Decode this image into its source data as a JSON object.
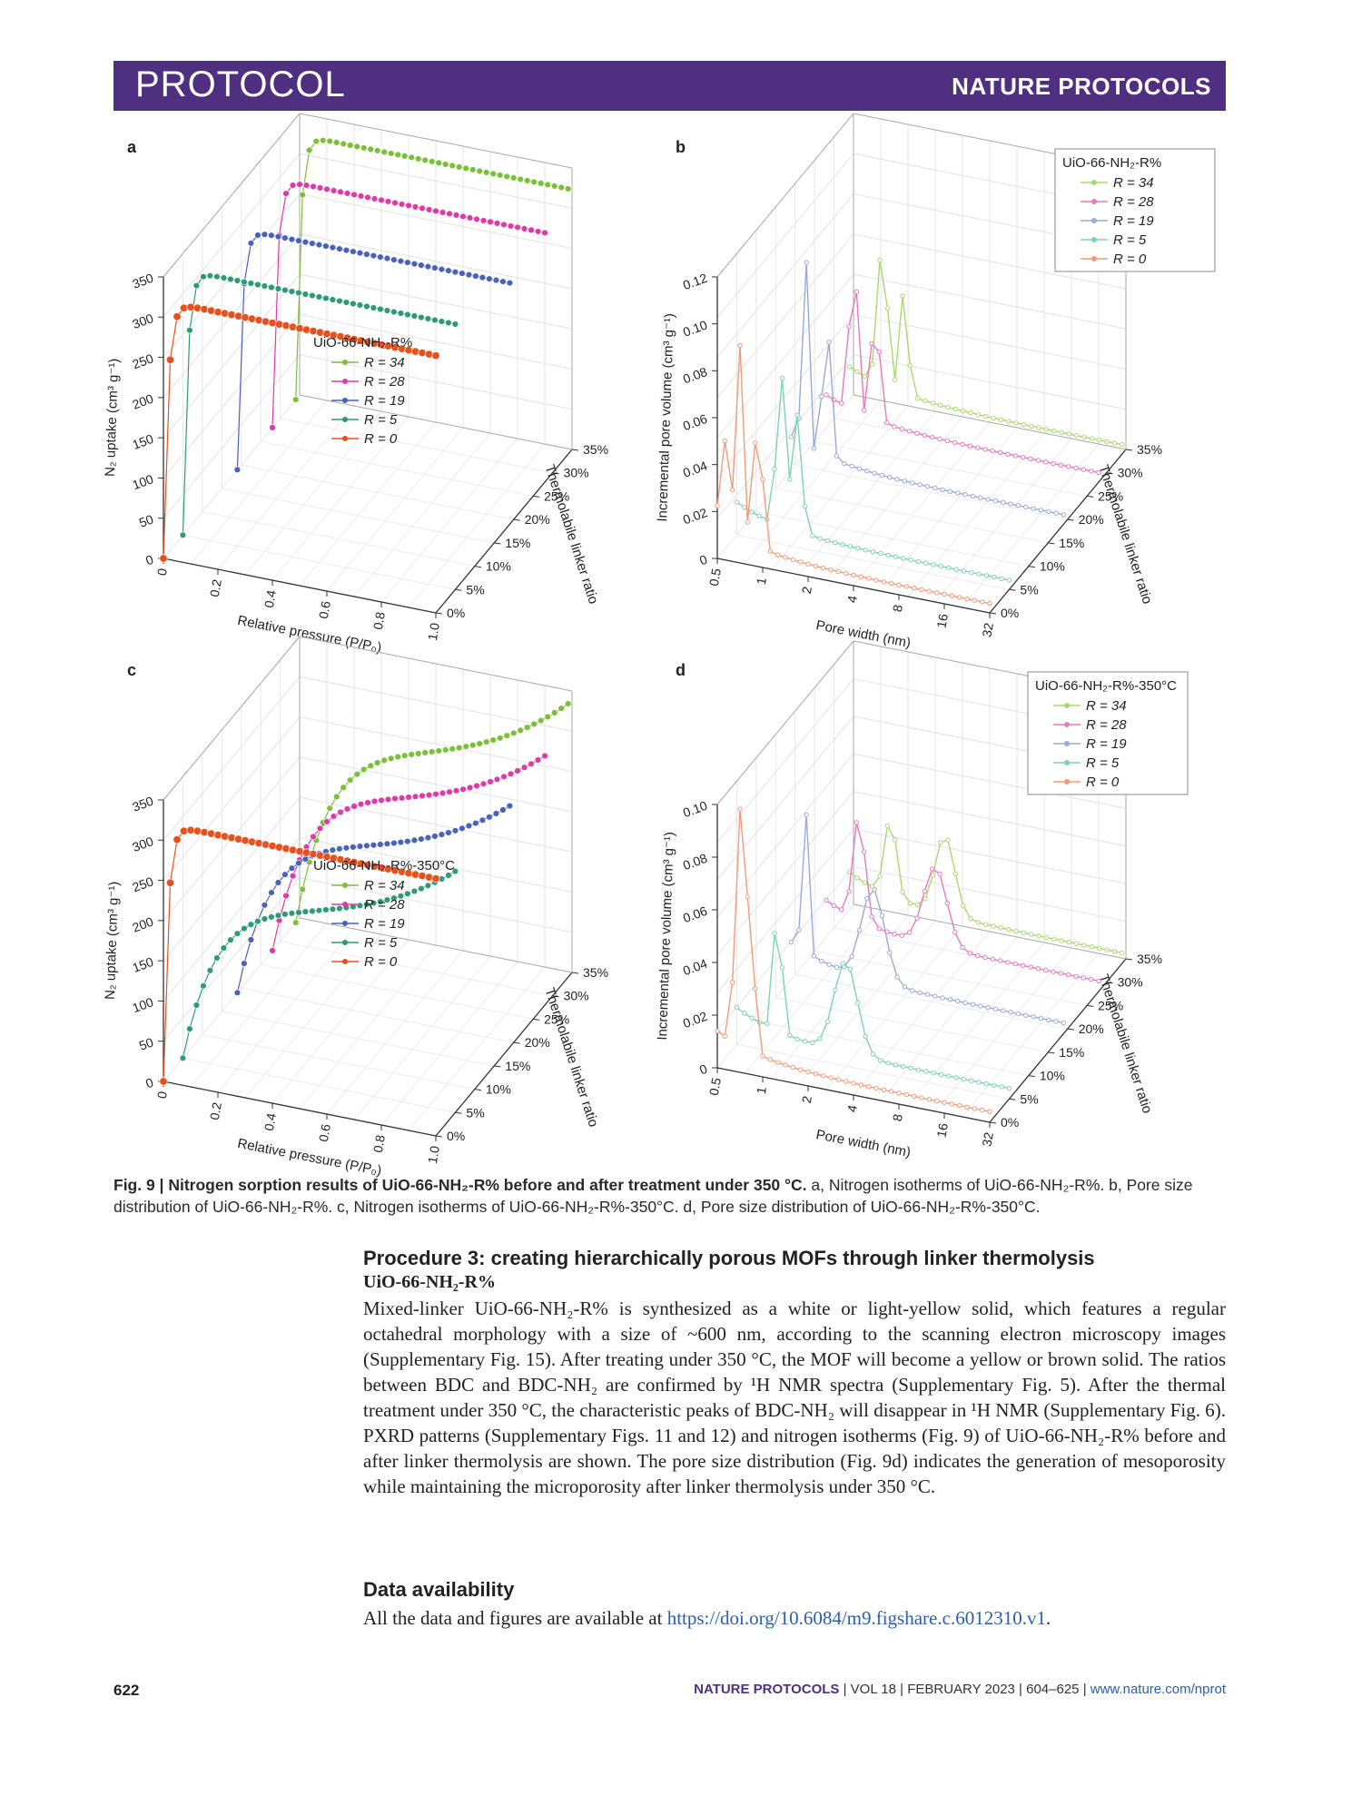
{
  "banner": {
    "section": "PROTOCOL",
    "journal": "NATURE PROTOCOLS"
  },
  "panels": {
    "a": {
      "label": "a",
      "ylabel": "N₂ uptake (cm³ g⁻¹)",
      "xlabel": "Relative pressure (P/P₀)",
      "zlabel": "Thermolabile linker ratio",
      "legend_title": "UiO-66-NH₂-R%",
      "yticks": [
        "0",
        "50",
        "100",
        "150",
        "200",
        "250",
        "300",
        "350"
      ],
      "xticks": [
        "0",
        "0.2",
        "0.4",
        "0.6",
        "0.8",
        "1.0"
      ],
      "zticks": [
        "0%",
        "5%",
        "10%",
        "15%",
        "20%",
        "25%",
        "30%",
        "35%"
      ],
      "legend": [
        "R = 34",
        "R = 28",
        "R = 19",
        "R = 5",
        "R = 0"
      ]
    },
    "b": {
      "label": "b",
      "ylabel": "Incremental pore volume (cm³ g⁻¹)",
      "xlabel": "Pore width (nm)",
      "zlabel": "Thermolabile linker ratio",
      "legend_title": "UiO-66-NH₂-R%",
      "yticks": [
        "0",
        "0.02",
        "0.04",
        "0.06",
        "0.08",
        "0.10",
        "0.12"
      ],
      "xticks": [
        "0.5",
        "1",
        "2",
        "4",
        "8",
        "16",
        "32"
      ],
      "zticks": [
        "0%",
        "5%",
        "10%",
        "15%",
        "20%",
        "25%",
        "30%",
        "35%"
      ],
      "legend": [
        "R = 34",
        "R = 28",
        "R = 19",
        "R = 5",
        "R = 0"
      ]
    },
    "c": {
      "label": "c",
      "ylabel": "N₂ uptake (cm³ g⁻¹)",
      "xlabel": "Relative pressure (P/P₀)",
      "zlabel": "Thermolabile linker ratio",
      "legend_title": "UiO-66-NH₂-R%-350°C",
      "yticks": [
        "0",
        "50",
        "100",
        "150",
        "200",
        "250",
        "300",
        "350"
      ],
      "xticks": [
        "0",
        "0.2",
        "0.4",
        "0.6",
        "0.8",
        "1.0"
      ],
      "zticks": [
        "0%",
        "5%",
        "10%",
        "15%",
        "20%",
        "25%",
        "30%",
        "35%"
      ],
      "legend": [
        "R = 34",
        "R = 28",
        "R = 19",
        "R = 5",
        "R = 0"
      ]
    },
    "d": {
      "label": "d",
      "ylabel": "Incremental pore volume (cm³ g⁻¹)",
      "xlabel": "Pore width (nm)",
      "zlabel": "Thermolabile linker ratio",
      "legend_title": "UiO-66-NH₂-R%-350°C",
      "yticks": [
        "0",
        "0.02",
        "0.04",
        "0.06",
        "0.08",
        "0.10"
      ],
      "xticks": [
        "0.5",
        "1",
        "2",
        "4",
        "8",
        "16",
        "32"
      ],
      "zticks": [
        "0%",
        "5%",
        "10%",
        "15%",
        "20%",
        "25%",
        "30%",
        "35%"
      ],
      "legend": [
        "R = 34",
        "R = 28",
        "R = 19",
        "R = 5",
        "R = 0"
      ]
    }
  },
  "colors": {
    "a_series": [
      "#7cc03a",
      "#e03aa8",
      "#4a62b8",
      "#2e9a78",
      "#e8501e"
    ],
    "b_series": [
      "#a9d96f",
      "#e67ac0",
      "#9aaad6",
      "#7fd1b5",
      "#f29b78"
    ],
    "banner": "#4f2f7f"
  },
  "chart_data": [
    {
      "panel": "a",
      "type": "line",
      "title": "Nitrogen isotherms of UiO-66-NH2-R%",
      "xlabel": "Relative pressure (P/P0)",
      "ylabel": "N2 uptake (cm3 g-1)",
      "zlabel": "Thermolabile linker ratio",
      "xlim": [
        0,
        1.0
      ],
      "ylim": [
        0,
        350
      ],
      "zlim": [
        0,
        35
      ],
      "series": [
        {
          "name": "R = 34",
          "z": 34,
          "plateau": 330
        },
        {
          "name": "R = 28",
          "z": 28,
          "plateau": 310
        },
        {
          "name": "R = 19",
          "z": 19,
          "plateau": 300
        },
        {
          "name": "R = 5",
          "z": 5,
          "plateau": 330
        },
        {
          "name": "R = 0",
          "z": 0,
          "plateau": 320
        }
      ]
    },
    {
      "panel": "b",
      "type": "line",
      "title": "Pore size distribution of UiO-66-NH2-R%",
      "xlabel": "Pore width (nm)",
      "ylabel": "Incremental pore volume (cm3 g-1)",
      "zlabel": "Thermolabile linker ratio",
      "xscale": "log2",
      "xlim": [
        0.5,
        32
      ],
      "ylim": [
        0,
        0.12
      ],
      "zlim": [
        0,
        35
      ],
      "series": [
        {
          "name": "R = 34",
          "z": 34
        },
        {
          "name": "R = 28",
          "z": 28
        },
        {
          "name": "R = 19",
          "z": 19
        },
        {
          "name": "R = 5",
          "z": 5
        },
        {
          "name": "R = 0",
          "z": 0
        }
      ]
    },
    {
      "panel": "c",
      "type": "line",
      "title": "Nitrogen isotherms of UiO-66-NH2-R%-350°C",
      "xlabel": "Relative pressure (P/P0)",
      "ylabel": "N2 uptake (cm3 g-1)",
      "zlabel": "Thermolabile linker ratio",
      "xlim": [
        0,
        1.0
      ],
      "ylim": [
        0,
        350
      ],
      "zlim": [
        0,
        35
      ],
      "series": [
        {
          "name": "R = 34",
          "z": 34
        },
        {
          "name": "R = 28",
          "z": 28
        },
        {
          "name": "R = 19",
          "z": 19
        },
        {
          "name": "R = 5",
          "z": 5
        },
        {
          "name": "R = 0",
          "z": 0
        }
      ]
    },
    {
      "panel": "d",
      "type": "line",
      "title": "Pore size distribution of UiO-66-NH2-R%-350°C",
      "xlabel": "Pore width (nm)",
      "ylabel": "Incremental pore volume (cm3 g-1)",
      "zlabel": "Thermolabile linker ratio",
      "xscale": "log2",
      "xlim": [
        0.5,
        32
      ],
      "ylim": [
        0,
        0.1
      ],
      "zlim": [
        0,
        35
      ],
      "series": [
        {
          "name": "R = 34",
          "z": 34
        },
        {
          "name": "R = 28",
          "z": 28
        },
        {
          "name": "R = 19",
          "z": 19
        },
        {
          "name": "R = 5",
          "z": 5
        },
        {
          "name": "R = 0",
          "z": 0
        }
      ]
    }
  ],
  "caption": {
    "lead": "Fig. 9 | Nitrogen sorption results of UiO-66-NH₂-R% before and after treatment under 350 °C.",
    "rest": " a, Nitrogen isotherms of UiO-66-NH₂-R%. b, Pore size distribution of UiO-66-NH₂-R%. c, Nitrogen isotherms of UiO-66-NH₂-R%-350°C. d, Pore size distribution of UiO-66-NH₂-R%-350°C."
  },
  "section": {
    "heading": "Procedure 3: creating hierarchically porous MOFs through linker thermolysis",
    "subheading": "UiO-66-NH₂-R%",
    "paragraph": "Mixed-linker UiO-66-NH₂-R% is synthesized as a white or light-yellow solid, which features a regular octahedral morphology with a size of ~600 nm, according to the scanning electron microscopy images (Supplementary Fig. 15). After treating under 350 °C, the MOF will become a yellow or brown solid. The ratios between BDC and BDC-NH₂ are confirmed by ¹H NMR spectra (Supplementary Fig. 5). After the thermal treatment under 350 °C, the characteristic peaks of BDC-NH₂ will disappear in ¹H NMR (Supplementary Fig. 6). PXRD patterns (Supplementary Figs. 11 and 12) and nitrogen isotherms (Fig. 9) of UiO-66-NH₂-R% before and after linker thermolysis are shown. The pore size distribution (Fig. 9d) indicates the generation of mesoporosity while maintaining the microporosity after linker thermolysis under 350 °C."
  },
  "data_availability": {
    "heading": "Data availability",
    "text": "All the data and figures are available at ",
    "url": "https://doi.org/10.6084/m9.figshare.c.6012310.v1",
    "end": "."
  },
  "footer": {
    "page": "622",
    "journal": "NATURE PROTOCOLS",
    "volume": "VOL 18",
    "date": "FEBRUARY 2023",
    "pages": "604–625",
    "url": "www.nature.com/nprot"
  }
}
